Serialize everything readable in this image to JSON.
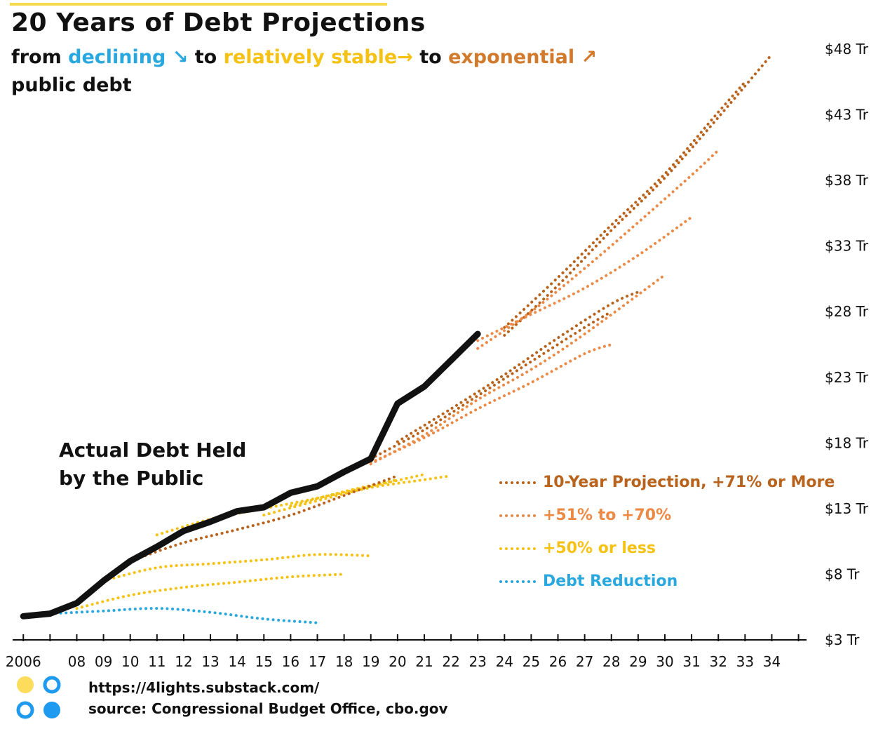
{
  "title": "20 Years of Debt Projections",
  "subtitle": {
    "from": "from",
    "declining": "declining ↘",
    "to1": "to",
    "stable": "relatively stable→",
    "to2": "to",
    "exponential": "exponential ↗",
    "line2": "public debt"
  },
  "actual_label_1": "Actual Debt Held",
  "actual_label_2": "by the Public",
  "legend": [
    {
      "label": "10-Year Projection, +71% or More",
      "color": "#b8621c"
    },
    {
      "label": "+51% to +70%",
      "color": "#ec8a45"
    },
    {
      "label": "+50% or less",
      "color": "#f5c214"
    },
    {
      "label": "Debt Reduction",
      "color": "#29a8e0"
    }
  ],
  "footer": {
    "url": "https://4lights.substack.com/",
    "source": "source: Congressional Budget Office, cbo.gov"
  },
  "logo_colors": {
    "yellow": "#fddc5c",
    "blue": "#1e9bf0"
  },
  "chart_data": {
    "type": "line",
    "title": "20 Years of Debt Projections",
    "xlabel": "",
    "ylabel": "",
    "xlim": [
      2005.6,
      2035.3
    ],
    "ylim": [
      3,
      49
    ],
    "y_ticks": [
      3,
      8,
      13,
      18,
      23,
      28,
      33,
      38,
      43,
      48
    ],
    "y_tick_labels": [
      "$3 Tr",
      "$8 Tr",
      "$13 Tr",
      "$18 Tr",
      "$23 Tr",
      "$28 Tr",
      "$33 Tr",
      "$38 Tr",
      "$43 Tr",
      "$48 Tr"
    ],
    "x_tick_labels": [
      {
        "x": 2006,
        "label": "2006"
      },
      {
        "x": 2008,
        "label": "08"
      },
      {
        "x": 2009,
        "label": "09"
      },
      {
        "x": 2010,
        "label": "10"
      },
      {
        "x": 2011,
        "label": "11"
      },
      {
        "x": 2012,
        "label": "12"
      },
      {
        "x": 2013,
        "label": "13"
      },
      {
        "x": 2014,
        "label": "14"
      },
      {
        "x": 2015,
        "label": "15"
      },
      {
        "x": 2016,
        "label": "16"
      },
      {
        "x": 2017,
        "label": "17"
      },
      {
        "x": 2018,
        "label": "18"
      },
      {
        "x": 2019,
        "label": "19"
      },
      {
        "x": 2020,
        "label": "20"
      },
      {
        "x": 2021,
        "label": "21"
      },
      {
        "x": 2022,
        "label": "22"
      },
      {
        "x": 2023,
        "label": "23"
      },
      {
        "x": 2024,
        "label": "24"
      },
      {
        "x": 2025,
        "label": "25"
      },
      {
        "x": 2026,
        "label": "26"
      },
      {
        "x": 2027,
        "label": "27"
      },
      {
        "x": 2028,
        "label": "28"
      },
      {
        "x": 2029,
        "label": "29"
      },
      {
        "x": 2030,
        "label": "30"
      },
      {
        "x": 2031,
        "label": "31"
      },
      {
        "x": 2032,
        "label": "32"
      },
      {
        "x": 2033,
        "label": "33"
      },
      {
        "x": 2034,
        "label": "34"
      }
    ],
    "actual": {
      "name": "Actual Debt Held by the Public",
      "color": "#111111",
      "points": [
        [
          2006,
          4.8
        ],
        [
          2007,
          5.0
        ],
        [
          2008,
          5.8
        ],
        [
          2009,
          7.5
        ],
        [
          2010,
          9.0
        ],
        [
          2011,
          10.1
        ],
        [
          2012,
          11.3
        ],
        [
          2013,
          12.0
        ],
        [
          2014,
          12.8
        ],
        [
          2015,
          13.1
        ],
        [
          2016,
          14.2
        ],
        [
          2017,
          14.7
        ],
        [
          2018,
          15.8
        ],
        [
          2019,
          16.8
        ],
        [
          2020,
          21.0
        ],
        [
          2021,
          22.3
        ],
        [
          2022,
          24.3
        ],
        [
          2023,
          26.3
        ]
      ]
    },
    "series": [
      {
        "name": "Debt Reduction",
        "category": "Debt Reduction",
        "color": "#29a8e0",
        "points": [
          [
            2007,
            5.0
          ],
          [
            2009,
            5.2
          ],
          [
            2011,
            5.4
          ],
          [
            2013,
            5.1
          ],
          [
            2015,
            4.6
          ],
          [
            2017,
            4.3
          ]
        ]
      },
      {
        "name": "+50% or less",
        "category": "+50% or less",
        "color": "#f5c214",
        "points": [
          [
            2008,
            5.4
          ],
          [
            2010,
            6.4
          ],
          [
            2012,
            7.0
          ],
          [
            2014,
            7.4
          ],
          [
            2016,
            7.8
          ],
          [
            2018,
            8.0
          ]
        ]
      },
      {
        "name": "+50% or less",
        "category": "+50% or less",
        "color": "#f5c214",
        "points": [
          [
            2009,
            7.5
          ],
          [
            2011,
            8.5
          ],
          [
            2013,
            8.8
          ],
          [
            2015,
            9.1
          ],
          [
            2017,
            9.5
          ],
          [
            2019,
            9.4
          ]
        ]
      },
      {
        "name": "+50% or less",
        "category": "+50% or less",
        "color": "#f5c214",
        "points": [
          [
            2011,
            11.0
          ],
          [
            2013,
            12.2
          ],
          [
            2015,
            13.0
          ],
          [
            2017,
            13.8
          ],
          [
            2019,
            14.7
          ],
          [
            2021,
            15.6
          ]
        ]
      },
      {
        "name": "+50% or less",
        "category": "+50% or less",
        "color": "#f5c214",
        "points": [
          [
            2015,
            12.5
          ],
          [
            2017,
            13.6
          ],
          [
            2019,
            14.6
          ],
          [
            2021,
            15.2
          ],
          [
            2022,
            15.5
          ]
        ]
      },
      {
        "name": "+50% or less",
        "category": "+50% or less",
        "color": "#f5c214",
        "points": [
          [
            2016,
            13.2
          ],
          [
            2018,
            14.3
          ],
          [
            2020,
            15.2
          ]
        ]
      },
      {
        "name": "10-Year Projection, +71% or More",
        "category": "10-Year Projection, +71% or More",
        "color": "#b8621c",
        "points": [
          [
            2010,
            9.0
          ],
          [
            2012,
            10.4
          ],
          [
            2014,
            11.4
          ],
          [
            2016,
            12.5
          ],
          [
            2018,
            14.0
          ],
          [
            2020,
            15.5
          ]
        ]
      },
      {
        "name": "10-Year Projection, +71% or More",
        "category": "10-Year Projection, +71% or More",
        "color": "#b8621c",
        "points": [
          [
            2019,
            16.8
          ],
          [
            2021,
            19.0
          ],
          [
            2023,
            21.6
          ],
          [
            2025,
            24.2
          ],
          [
            2027,
            26.8
          ],
          [
            2028,
            28.0
          ]
        ]
      },
      {
        "name": "10-Year Projection, +71% or More",
        "category": "10-Year Projection, +71% or More",
        "color": "#b8621c",
        "points": [
          [
            2020,
            18.1
          ],
          [
            2022,
            20.6
          ],
          [
            2024,
            23.2
          ],
          [
            2026,
            26.0
          ],
          [
            2028,
            28.6
          ],
          [
            2029,
            29.5
          ]
        ]
      },
      {
        "name": "10-Year Projection, +71% or More",
        "category": "10-Year Projection, +71% or More",
        "color": "#b8621c",
        "points": [
          [
            2024,
            26.2
          ],
          [
            2026,
            30.0
          ],
          [
            2028,
            34.2
          ],
          [
            2030,
            38.2
          ],
          [
            2032,
            42.8
          ],
          [
            2034,
            47.6
          ]
        ]
      },
      {
        "name": "10-Year Projection, +71% or More",
        "category": "10-Year Projection, +71% or More",
        "color": "#b8621c",
        "points": [
          [
            2024,
            26.8
          ],
          [
            2026,
            30.6
          ],
          [
            2028,
            34.6
          ],
          [
            2030,
            38.5
          ],
          [
            2032,
            43.2
          ],
          [
            2033,
            45.5
          ]
        ]
      },
      {
        "name": "+51% to +70%",
        "category": "+51% to +70%",
        "color": "#ec8a45",
        "points": [
          [
            2019,
            16.5
          ],
          [
            2021,
            18.4
          ],
          [
            2023,
            20.6
          ],
          [
            2025,
            22.6
          ],
          [
            2027,
            24.8
          ],
          [
            2028,
            25.5
          ]
        ]
      },
      {
        "name": "+51% to +70%",
        "category": "+51% to +70%",
        "color": "#ec8a45",
        "points": [
          [
            2019,
            16.4
          ],
          [
            2021,
            18.6
          ],
          [
            2023,
            21.3
          ],
          [
            2025,
            23.6
          ],
          [
            2027,
            26.3
          ],
          [
            2030,
            30.8
          ]
        ]
      },
      {
        "name": "+51% to +70%",
        "category": "+51% to +70%",
        "color": "#ec8a45",
        "points": [
          [
            2023,
            25.8
          ],
          [
            2025,
            27.8
          ],
          [
            2027,
            29.8
          ],
          [
            2029,
            32.3
          ],
          [
            2031,
            35.2
          ]
        ]
      },
      {
        "name": "+51% to +70%",
        "category": "+51% to +70%",
        "color": "#ec8a45",
        "points": [
          [
            2023,
            25.2
          ],
          [
            2025,
            28.0
          ],
          [
            2027,
            31.3
          ],
          [
            2029,
            34.8
          ],
          [
            2031,
            38.4
          ],
          [
            2032,
            40.3
          ]
        ]
      }
    ]
  }
}
